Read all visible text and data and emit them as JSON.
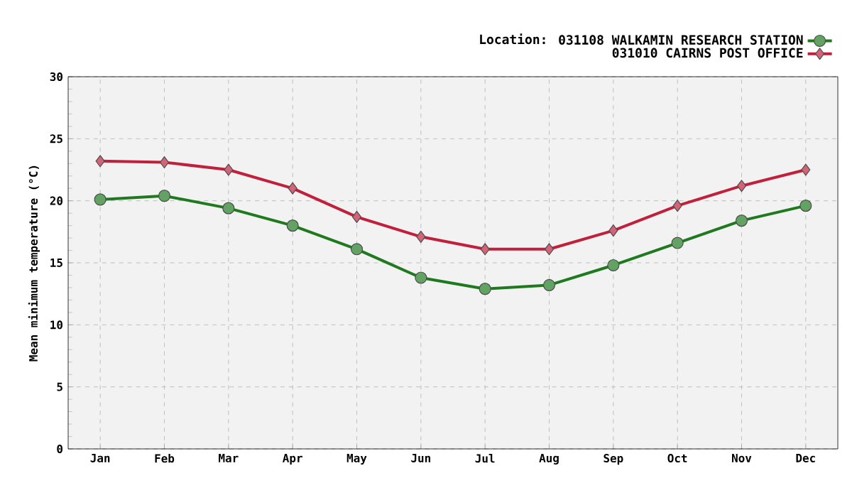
{
  "chart_data": {
    "type": "line",
    "legend_title": "Location:",
    "ylabel": "Mean minimum temperature (°C)",
    "categories": [
      "Jan",
      "Feb",
      "Mar",
      "Apr",
      "May",
      "Jun",
      "Jul",
      "Aug",
      "Sep",
      "Oct",
      "Nov",
      "Dec"
    ],
    "series": [
      {
        "name": "031108 WALKAMIN RESEARCH STATION",
        "color": "#1f7a1f",
        "marker": "circle",
        "values": [
          20.1,
          20.4,
          19.4,
          18.0,
          16.1,
          13.8,
          12.9,
          13.2,
          14.8,
          16.6,
          18.4,
          19.6
        ]
      },
      {
        "name": "031010 CAIRNS POST OFFICE",
        "color": "#c0203c",
        "marker": "diamond",
        "values": [
          23.2,
          23.1,
          22.5,
          21.0,
          18.7,
          17.1,
          16.1,
          16.1,
          17.6,
          19.6,
          21.2,
          22.5
        ]
      }
    ],
    "ylim": [
      0,
      30
    ],
    "yticks": [
      0,
      5,
      10,
      15,
      20,
      25,
      30
    ],
    "grid": true,
    "legend": "top right",
    "line_style": "solid"
  }
}
